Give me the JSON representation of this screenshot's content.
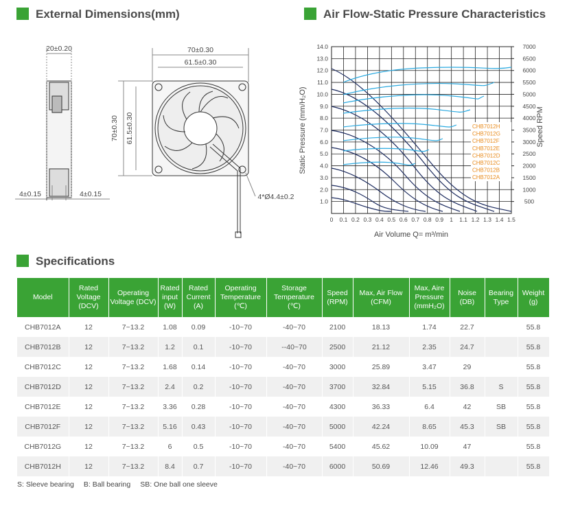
{
  "dimensions": {
    "title": "External Dimensions(mm)",
    "labels": [
      "20±0.20",
      "70±0.30",
      "61.5±0.30",
      "70±0.30",
      "61.5±0.30",
      "4±0.15",
      "4±0.15",
      "4*Ø4.4±0.2"
    ]
  },
  "chart": {
    "title": "Air Flow-Static Pressure Characteristics",
    "y_label": "Static Pressure (mm/H₂O)",
    "y2_label": "Speed RPM",
    "x_label": "Air Volume Q= m³/min",
    "xlim": [
      0,
      1.5
    ],
    "xticks": [
      0,
      0.1,
      0.2,
      0.3,
      0.4,
      0.5,
      0.6,
      0.7,
      0.8,
      0.9,
      1.0,
      1.1,
      1.2,
      1.3,
      1.4,
      1.5
    ],
    "ylim": [
      0,
      14
    ],
    "yticks": [
      {
        "value": 1,
        "label": "1.0"
      },
      {
        "value": 2,
        "label": "2.0"
      },
      {
        "value": 3,
        "label": "3.0"
      },
      {
        "value": 4,
        "label": "4.0"
      },
      {
        "value": 5,
        "label": "5.0"
      },
      {
        "value": 6,
        "label": "6.0"
      },
      {
        "value": 7,
        "label": "7.0"
      },
      {
        "value": 8,
        "label": "8.0"
      },
      {
        "value": 9,
        "label": "9.0"
      },
      {
        "value": 10,
        "label": "10.0"
      },
      {
        "value": 11,
        "label": "11.0"
      },
      {
        "value": 12,
        "label": "12.0"
      },
      {
        "value": 13,
        "label": "13.0"
      },
      {
        "value": 14,
        "label": "14.0"
      }
    ],
    "y2lim": [
      0,
      7000
    ],
    "y2ticks": [
      500,
      1000,
      1500,
      2000,
      2500,
      3000,
      3500,
      4000,
      4500,
      5000,
      5500,
      6000,
      6500,
      7000
    ],
    "legend": [
      "CHB7012H",
      "CHB7012G",
      "CHB7012F",
      "CHB7012E",
      "CHB7012D",
      "CHB7012C",
      "CHB7012B",
      "CHB7012A"
    ]
  },
  "specs": {
    "title": "Specifications",
    "header": [
      "Model",
      "Rated Voltage (DCV)",
      "Operating Voltage (DCV)",
      "Rated input (W)",
      "Rated Current (A)",
      "Operating Temperature (℃)",
      "Storage Temperature (℃)",
      "Speed (RPM)",
      "Max, Air Flow (CFM)",
      "Max, Aire Pressure (mmH₂O)",
      "Noise (DB)",
      "Bearing Type",
      "Weight (g)"
    ],
    "rows": [
      [
        "CHB7012A",
        "12",
        "7~13.2",
        "1.08",
        "0.09",
        "-10~70",
        "-40~70",
        "2100",
        "18.13",
        "1.74",
        "22.7",
        "",
        "55.8"
      ],
      [
        "CHB7012B",
        "12",
        "7~13.2",
        "1.2",
        "0.1",
        "-10~70",
        "--40~70",
        "2500",
        "21.12",
        "2.35",
        "24.7",
        "",
        "55.8"
      ],
      [
        "CHB7012C",
        "12",
        "7~13.2",
        "1.68",
        "0.14",
        "-10~70",
        "-40~70",
        "3000",
        "25.89",
        "3.47",
        "29",
        "",
        "55.8"
      ],
      [
        "CHB7012D",
        "12",
        "7~13.2",
        "2.4",
        "0.2",
        "-10~70",
        "-40~70",
        "3700",
        "32.84",
        "5.15",
        "36.8",
        "S",
        "55.8"
      ],
      [
        "CHB7012E",
        "12",
        "7~13.2",
        "3.36",
        "0.28",
        "-10~70",
        "-40~70",
        "4300",
        "36.33",
        "6.4",
        "42",
        "SB",
        "55.8"
      ],
      [
        "CHB7012F",
        "12",
        "7~13.2",
        "5.16",
        "0.43",
        "-10~70",
        "-40~70",
        "5000",
        "42.24",
        "8.65",
        "45.3",
        "SB",
        "55.8"
      ],
      [
        "CHB7012G",
        "12",
        "7~13.2",
        "6",
        "0.5",
        "-10~70",
        "-40~70",
        "5400",
        "45.62",
        "10.09",
        "47",
        "",
        "55.8"
      ],
      [
        "CHB7012H",
        "12",
        "7~13.2",
        "8.4",
        "0.7",
        "-10~70",
        "-40~70",
        "6000",
        "50.69",
        "12.46",
        "49.3",
        "",
        "55.8"
      ]
    ],
    "notes": [
      "S: Sleeve bearing",
      "B: Ball bearing",
      "SB: One ball one sleeve"
    ]
  }
}
